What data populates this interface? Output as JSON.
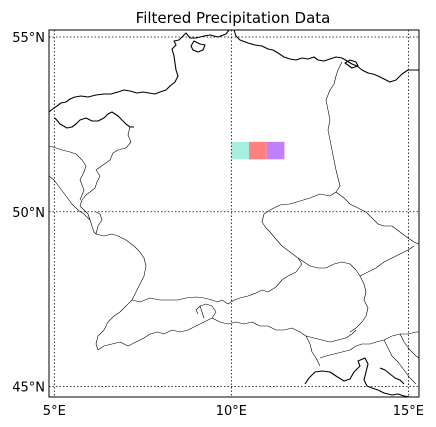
{
  "chart_data": {
    "type": "heatmap",
    "title": "Filtered Precipitation Data",
    "projection": "PlateCarree",
    "extent": {
      "lon": [
        4.85,
        15.3
      ],
      "lat": [
        44.7,
        55.2
      ]
    },
    "gridlines": {
      "style": "dotted",
      "lon": [
        5,
        10,
        15
      ],
      "lat": [
        45,
        50,
        55
      ],
      "lon_labels": [
        "5°E",
        "10°E",
        "15°E"
      ],
      "lat_labels": [
        "45°N",
        "50°N",
        "55°N"
      ]
    },
    "features": [
      "coastlines",
      "country-borders"
    ],
    "cells": [
      {
        "lon": [
          10.0,
          10.5
        ],
        "lat": [
          51.5,
          52.0
        ],
        "color": "#a6efe0"
      },
      {
        "lon": [
          10.5,
          11.0
        ],
        "lat": [
          51.5,
          52.0
        ],
        "color": "#ff8080"
      },
      {
        "lon": [
          11.0,
          11.5
        ],
        "lat": [
          51.5,
          52.0
        ],
        "color": "#c080f8"
      }
    ]
  }
}
